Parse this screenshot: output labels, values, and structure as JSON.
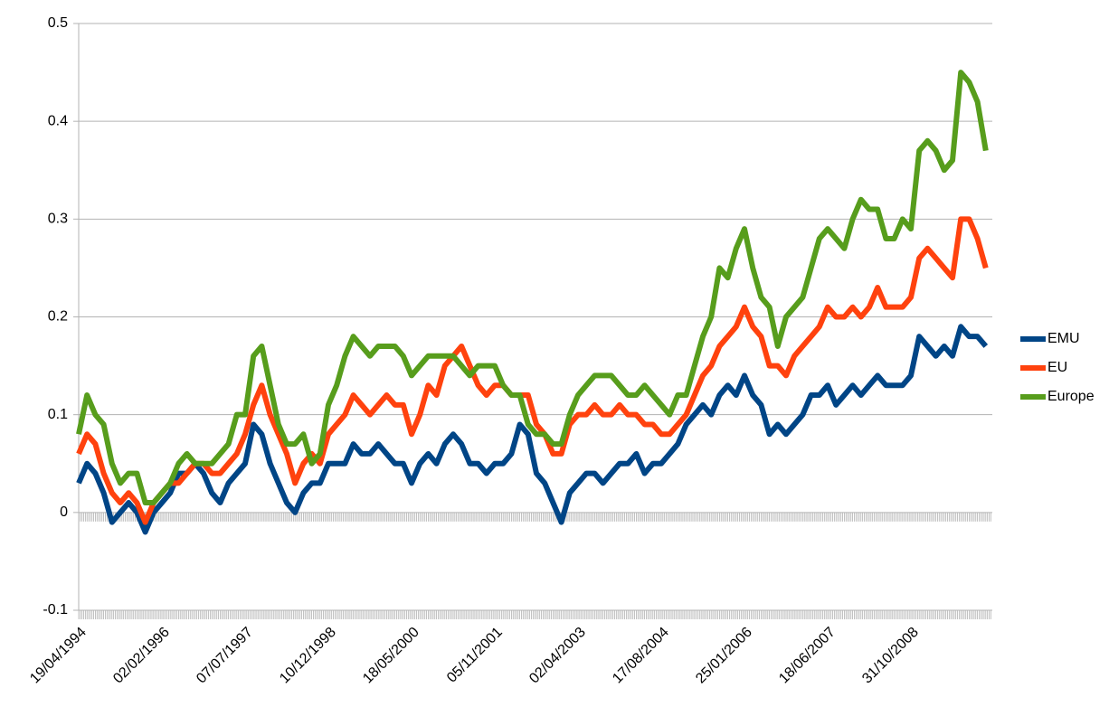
{
  "chart_data": {
    "type": "line",
    "categories": [
      "19/04/1994",
      null,
      null,
      null,
      null,
      null,
      null,
      null,
      null,
      null,
      "02/02/1996",
      null,
      null,
      null,
      null,
      null,
      null,
      null,
      null,
      null,
      "07/07/1997",
      null,
      null,
      null,
      null,
      null,
      null,
      null,
      null,
      null,
      "10/12/1998",
      null,
      null,
      null,
      null,
      null,
      null,
      null,
      null,
      null,
      "18/05/2000",
      null,
      null,
      null,
      null,
      null,
      null,
      null,
      null,
      null,
      "05/11/2001",
      null,
      null,
      null,
      null,
      null,
      null,
      null,
      null,
      null,
      "02/04/2003",
      null,
      null,
      null,
      null,
      null,
      null,
      null,
      null,
      null,
      "17/08/2004",
      null,
      null,
      null,
      null,
      null,
      null,
      null,
      null,
      null,
      "25/01/2006",
      null,
      null,
      null,
      null,
      null,
      null,
      null,
      null,
      null,
      "18/06/2007",
      null,
      null,
      null,
      null,
      null,
      null,
      null,
      null,
      null,
      "31/10/2008",
      null,
      null,
      null,
      null,
      null,
      null,
      null,
      null,
      null
    ],
    "series": [
      {
        "name": "EMU",
        "color": "#004586",
        "values": [
          0.03,
          0.05,
          0.04,
          0.02,
          -0.01,
          0.0,
          0.01,
          0.0,
          -0.02,
          0.0,
          0.01,
          0.02,
          0.04,
          0.04,
          0.05,
          0.04,
          0.02,
          0.01,
          0.03,
          0.04,
          0.05,
          0.09,
          0.08,
          0.05,
          0.03,
          0.01,
          0.0,
          0.02,
          0.03,
          0.03,
          0.05,
          0.05,
          0.05,
          0.07,
          0.06,
          0.06,
          0.07,
          0.06,
          0.05,
          0.05,
          0.03,
          0.05,
          0.06,
          0.05,
          0.07,
          0.08,
          0.07,
          0.05,
          0.05,
          0.04,
          0.05,
          0.05,
          0.06,
          0.09,
          0.08,
          0.04,
          0.03,
          0.01,
          -0.01,
          0.02,
          0.03,
          0.04,
          0.04,
          0.03,
          0.04,
          0.05,
          0.05,
          0.06,
          0.04,
          0.05,
          0.05,
          0.06,
          0.07,
          0.09,
          0.1,
          0.11,
          0.1,
          0.12,
          0.13,
          0.12,
          0.14,
          0.12,
          0.11,
          0.08,
          0.09,
          0.08,
          0.09,
          0.1,
          0.12,
          0.12,
          0.13,
          0.11,
          0.12,
          0.13,
          0.12,
          0.13,
          0.14,
          0.13,
          0.13,
          0.13,
          0.14,
          0.18,
          0.17,
          0.16,
          0.17,
          0.16,
          0.19,
          0.18,
          0.18,
          0.17
        ]
      },
      {
        "name": "EU",
        "color": "#ff420e",
        "values": [
          0.06,
          0.08,
          0.07,
          0.04,
          0.02,
          0.01,
          0.02,
          0.01,
          -0.01,
          0.01,
          0.02,
          0.03,
          0.03,
          0.04,
          0.05,
          0.05,
          0.04,
          0.04,
          0.05,
          0.06,
          0.08,
          0.11,
          0.13,
          0.1,
          0.08,
          0.06,
          0.03,
          0.05,
          0.06,
          0.05,
          0.08,
          0.09,
          0.1,
          0.12,
          0.11,
          0.1,
          0.11,
          0.12,
          0.11,
          0.11,
          0.08,
          0.1,
          0.13,
          0.12,
          0.15,
          0.16,
          0.17,
          0.15,
          0.13,
          0.12,
          0.13,
          0.13,
          0.12,
          0.12,
          0.12,
          0.09,
          0.08,
          0.06,
          0.06,
          0.09,
          0.1,
          0.1,
          0.11,
          0.1,
          0.1,
          0.11,
          0.1,
          0.1,
          0.09,
          0.09,
          0.08,
          0.08,
          0.09,
          0.1,
          0.12,
          0.14,
          0.15,
          0.17,
          0.18,
          0.19,
          0.21,
          0.19,
          0.18,
          0.15,
          0.15,
          0.14,
          0.16,
          0.17,
          0.18,
          0.19,
          0.21,
          0.2,
          0.2,
          0.21,
          0.2,
          0.21,
          0.23,
          0.21,
          0.21,
          0.21,
          0.22,
          0.26,
          0.27,
          0.26,
          0.25,
          0.24,
          0.3,
          0.3,
          0.28,
          0.25
        ]
      },
      {
        "name": "Europe",
        "color": "#579d1c",
        "values": [
          0.08,
          0.12,
          0.1,
          0.09,
          0.05,
          0.03,
          0.04,
          0.04,
          0.01,
          0.01,
          0.02,
          0.03,
          0.05,
          0.06,
          0.05,
          0.05,
          0.05,
          0.06,
          0.07,
          0.1,
          0.1,
          0.16,
          0.17,
          0.13,
          0.09,
          0.07,
          0.07,
          0.08,
          0.05,
          0.06,
          0.11,
          0.13,
          0.16,
          0.18,
          0.17,
          0.16,
          0.17,
          0.17,
          0.17,
          0.16,
          0.14,
          0.15,
          0.16,
          0.16,
          0.16,
          0.16,
          0.15,
          0.14,
          0.15,
          0.15,
          0.15,
          0.13,
          0.12,
          0.12,
          0.09,
          0.08,
          0.08,
          0.07,
          0.07,
          0.1,
          0.12,
          0.13,
          0.14,
          0.14,
          0.14,
          0.13,
          0.12,
          0.12,
          0.13,
          0.12,
          0.11,
          0.1,
          0.12,
          0.12,
          0.15,
          0.18,
          0.2,
          0.25,
          0.24,
          0.27,
          0.29,
          0.25,
          0.22,
          0.21,
          0.17,
          0.2,
          0.21,
          0.22,
          0.25,
          0.28,
          0.29,
          0.28,
          0.27,
          0.3,
          0.32,
          0.31,
          0.31,
          0.28,
          0.28,
          0.3,
          0.29,
          0.37,
          0.38,
          0.37,
          0.35,
          0.36,
          0.45,
          0.44,
          0.42,
          0.37
        ]
      }
    ],
    "ylim": [
      -0.1,
      0.5
    ],
    "yticks": [
      -0.1,
      0,
      0.1,
      0.2,
      0.3,
      0.4,
      0.5
    ],
    "grid": true,
    "legend": "right"
  }
}
